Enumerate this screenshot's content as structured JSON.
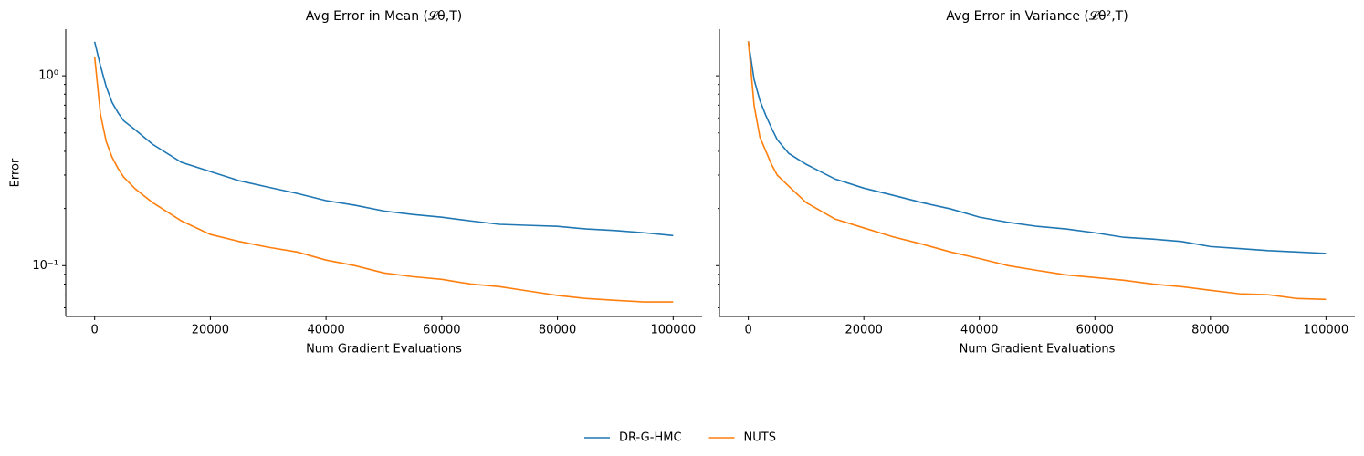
{
  "chart_data": [
    {
      "type": "line",
      "title": "Avg Error in Mean (𝓛θ,T)",
      "xlabel": "Num Gradient Evaluations",
      "ylabel": "Error",
      "log_y": true,
      "legend": "bottom",
      "x": [
        0,
        1000,
        2000,
        3000,
        4000,
        5000,
        7000,
        10000,
        15000,
        20000,
        25000,
        30000,
        35000,
        40000,
        45000,
        50000,
        55000,
        60000,
        65000,
        70000,
        75000,
        80000,
        85000,
        90000,
        95000,
        100000
      ],
      "xlim": [
        -5000,
        105000
      ],
      "xticks": [
        0,
        20000,
        40000,
        60000,
        80000,
        100000
      ],
      "ylim": [
        0.054,
        1.76
      ],
      "yticks": [
        {
          "value": 0.1,
          "label": "10⁻¹"
        },
        {
          "value": 1,
          "label": "10⁰"
        }
      ],
      "yminorticks": [
        0.06,
        0.07,
        0.08,
        0.09,
        0.2,
        0.3,
        0.4,
        0.5,
        0.6,
        0.7,
        0.8,
        0.9
      ],
      "series": [
        {
          "name": "DR-G-HMC",
          "color": "#1f77b4",
          "values": [
            1.51,
            1.13,
            0.876,
            0.725,
            0.642,
            0.58,
            0.52,
            0.436,
            0.35,
            0.313,
            0.28,
            0.259,
            0.24,
            0.22,
            0.208,
            0.194,
            0.186,
            0.18,
            0.172,
            0.165,
            0.163,
            0.161,
            0.156,
            0.153,
            0.149,
            0.144
          ]
        },
        {
          "name": "NUTS",
          "color": "#ff7f0e",
          "values": [
            1.26,
            0.628,
            0.45,
            0.373,
            0.327,
            0.293,
            0.254,
            0.215,
            0.172,
            0.146,
            0.134,
            0.125,
            0.118,
            0.107,
            0.1,
            0.0915,
            0.0875,
            0.0847,
            0.08,
            0.0775,
            0.0735,
            0.0697,
            0.0671,
            0.0657,
            0.0644,
            0.0644
          ]
        }
      ]
    },
    {
      "type": "line",
      "title": "Avg Error in Variance (𝓛θ²,T)",
      "xlabel": "Num Gradient Evaluations",
      "log_y": true,
      "sharey": true,
      "x": [
        0,
        1000,
        2000,
        3000,
        4000,
        5000,
        7000,
        10000,
        15000,
        20000,
        25000,
        30000,
        35000,
        40000,
        45000,
        50000,
        55000,
        60000,
        65000,
        70000,
        75000,
        80000,
        85000,
        90000,
        95000,
        100000
      ],
      "xlim": [
        -5000,
        105000
      ],
      "xticks": [
        0,
        20000,
        40000,
        60000,
        80000,
        100000
      ],
      "ylim": [
        0.054,
        1.76
      ],
      "series": [
        {
          "color": "#1f77b4",
          "values": [
            1.52,
            0.957,
            0.742,
            0.621,
            0.532,
            0.461,
            0.39,
            0.342,
            0.286,
            0.256,
            0.235,
            0.215,
            0.199,
            0.18,
            0.169,
            0.161,
            0.156,
            0.149,
            0.141,
            0.138,
            0.134,
            0.126,
            0.123,
            0.12,
            0.118,
            0.116
          ]
        },
        {
          "color": "#ff7f0e",
          "values": [
            1.52,
            0.7,
            0.476,
            0.403,
            0.342,
            0.3,
            0.262,
            0.215,
            0.176,
            0.158,
            0.142,
            0.13,
            0.118,
            0.109,
            0.1,
            0.0944,
            0.0894,
            0.0866,
            0.0838,
            0.08,
            0.0775,
            0.0742,
            0.0711,
            0.0703,
            0.0671,
            0.0664
          ]
        }
      ]
    }
  ]
}
